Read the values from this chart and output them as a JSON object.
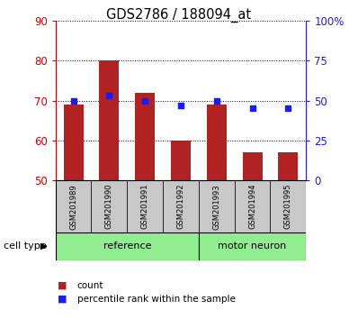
{
  "title": "GDS2786 / 188094_at",
  "samples": [
    "GSM201989",
    "GSM201990",
    "GSM201991",
    "GSM201992",
    "GSM201993",
    "GSM201994",
    "GSM201995"
  ],
  "bar_values": [
    69,
    80,
    72,
    60,
    69,
    57,
    57
  ],
  "dot_values_pct": [
    50,
    53,
    50,
    47,
    50,
    45,
    45
  ],
  "bar_bottom": 50,
  "ylim_left": [
    50,
    90
  ],
  "ylim_right": [
    0,
    100
  ],
  "yticks_left": [
    50,
    60,
    70,
    80,
    90
  ],
  "yticks_right": [
    0,
    25,
    50,
    75,
    100
  ],
  "yticklabels_right": [
    "0",
    "25",
    "50",
    "75",
    "100%"
  ],
  "bar_color": "#b22222",
  "dot_color": "#1a1aff",
  "tick_color_left": "#cc0000",
  "tick_color_right": "#1a1aff",
  "ref_bg": "#90ee90",
  "mn_bg": "#90ee90",
  "sample_bg": "#c8c8c8",
  "legend_bar_label": "count",
  "legend_dot_label": "percentile rank within the sample",
  "cell_type_label": "cell type",
  "ref_count": 4,
  "mn_count": 3
}
